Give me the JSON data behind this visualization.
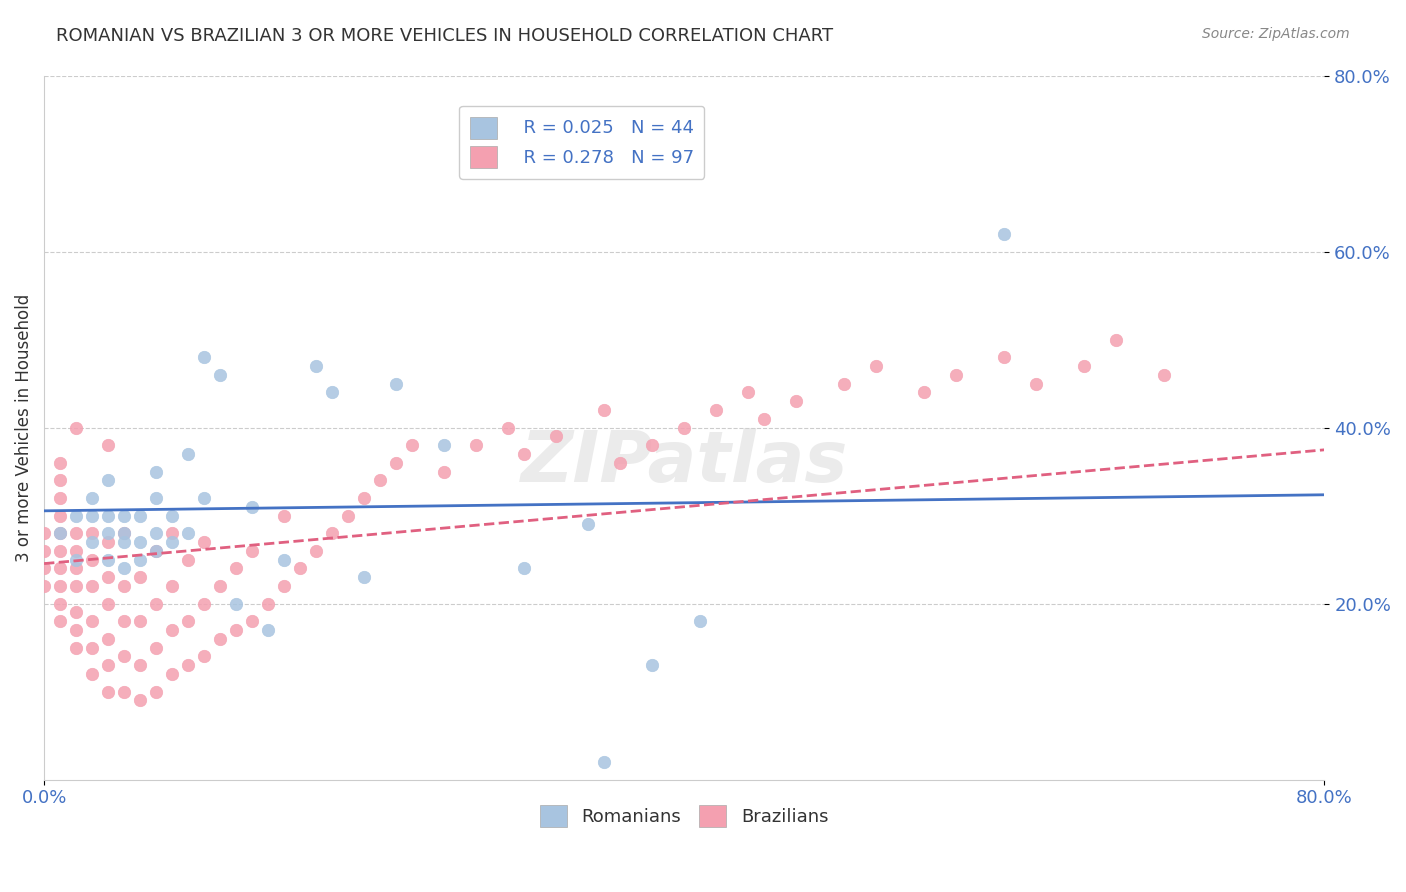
{
  "title": "ROMANIAN VS BRAZILIAN 3 OR MORE VEHICLES IN HOUSEHOLD CORRELATION CHART",
  "source": "Source: ZipAtlas.com",
  "ylabel": "3 or more Vehicles in Household",
  "xlim": [
    0.0,
    0.8
  ],
  "ylim": [
    0.0,
    0.8
  ],
  "xtick_labels": [
    "0.0%",
    "80.0%"
  ],
  "ytick_labels": [
    "20.0%",
    "40.0%",
    "60.0%",
    "80.0%"
  ],
  "ytick_positions": [
    0.2,
    0.4,
    0.6,
    0.8
  ],
  "romanian_R": "0.025",
  "romanian_N": "44",
  "brazilian_R": "0.278",
  "brazilian_N": "97",
  "romanian_color": "#a8c4e0",
  "brazilian_color": "#f4a0b0",
  "romanian_line_color": "#4472c4",
  "brazilian_line_color": "#e06080",
  "watermark": "ZIPatlas",
  "romanian_x": [
    0.01,
    0.02,
    0.02,
    0.03,
    0.03,
    0.03,
    0.04,
    0.04,
    0.04,
    0.04,
    0.05,
    0.05,
    0.05,
    0.05,
    0.06,
    0.06,
    0.06,
    0.07,
    0.07,
    0.07,
    0.07,
    0.08,
    0.08,
    0.09,
    0.09,
    0.1,
    0.1,
    0.11,
    0.12,
    0.13,
    0.14,
    0.15,
    0.17,
    0.18,
    0.2,
    0.22,
    0.25,
    0.27,
    0.3,
    0.34,
    0.38,
    0.41,
    0.6,
    0.35
  ],
  "romanian_y": [
    0.28,
    0.25,
    0.3,
    0.27,
    0.3,
    0.32,
    0.25,
    0.28,
    0.3,
    0.34,
    0.24,
    0.27,
    0.28,
    0.3,
    0.25,
    0.27,
    0.3,
    0.26,
    0.28,
    0.32,
    0.35,
    0.27,
    0.3,
    0.28,
    0.37,
    0.32,
    0.48,
    0.46,
    0.2,
    0.31,
    0.17,
    0.25,
    0.47,
    0.44,
    0.23,
    0.45,
    0.38,
    0.7,
    0.24,
    0.29,
    0.13,
    0.18,
    0.62,
    0.02
  ],
  "brazilian_x": [
    0.0,
    0.0,
    0.0,
    0.0,
    0.01,
    0.01,
    0.01,
    0.01,
    0.01,
    0.01,
    0.01,
    0.01,
    0.01,
    0.01,
    0.02,
    0.02,
    0.02,
    0.02,
    0.02,
    0.02,
    0.02,
    0.02,
    0.03,
    0.03,
    0.03,
    0.03,
    0.03,
    0.03,
    0.04,
    0.04,
    0.04,
    0.04,
    0.04,
    0.04,
    0.04,
    0.05,
    0.05,
    0.05,
    0.05,
    0.05,
    0.06,
    0.06,
    0.06,
    0.06,
    0.07,
    0.07,
    0.07,
    0.07,
    0.08,
    0.08,
    0.08,
    0.08,
    0.09,
    0.09,
    0.09,
    0.1,
    0.1,
    0.1,
    0.11,
    0.11,
    0.12,
    0.12,
    0.13,
    0.13,
    0.14,
    0.15,
    0.15,
    0.16,
    0.17,
    0.18,
    0.19,
    0.2,
    0.21,
    0.22,
    0.23,
    0.25,
    0.27,
    0.29,
    0.3,
    0.32,
    0.35,
    0.36,
    0.38,
    0.4,
    0.42,
    0.44,
    0.45,
    0.47,
    0.5,
    0.52,
    0.55,
    0.57,
    0.6,
    0.62,
    0.65,
    0.67,
    0.7
  ],
  "brazilian_y": [
    0.22,
    0.24,
    0.26,
    0.28,
    0.18,
    0.2,
    0.22,
    0.24,
    0.26,
    0.28,
    0.3,
    0.32,
    0.34,
    0.36,
    0.15,
    0.17,
    0.19,
    0.22,
    0.24,
    0.26,
    0.28,
    0.4,
    0.12,
    0.15,
    0.18,
    0.22,
    0.25,
    0.28,
    0.1,
    0.13,
    0.16,
    0.2,
    0.23,
    0.27,
    0.38,
    0.1,
    0.14,
    0.18,
    0.22,
    0.28,
    0.09,
    0.13,
    0.18,
    0.23,
    0.1,
    0.15,
    0.2,
    0.26,
    0.12,
    0.17,
    0.22,
    0.28,
    0.13,
    0.18,
    0.25,
    0.14,
    0.2,
    0.27,
    0.16,
    0.22,
    0.17,
    0.24,
    0.18,
    0.26,
    0.2,
    0.22,
    0.3,
    0.24,
    0.26,
    0.28,
    0.3,
    0.32,
    0.34,
    0.36,
    0.38,
    0.35,
    0.38,
    0.4,
    0.37,
    0.39,
    0.42,
    0.36,
    0.38,
    0.4,
    0.42,
    0.44,
    0.41,
    0.43,
    0.45,
    0.47,
    0.44,
    0.46,
    0.48,
    0.45,
    0.47,
    0.5,
    0.46
  ]
}
